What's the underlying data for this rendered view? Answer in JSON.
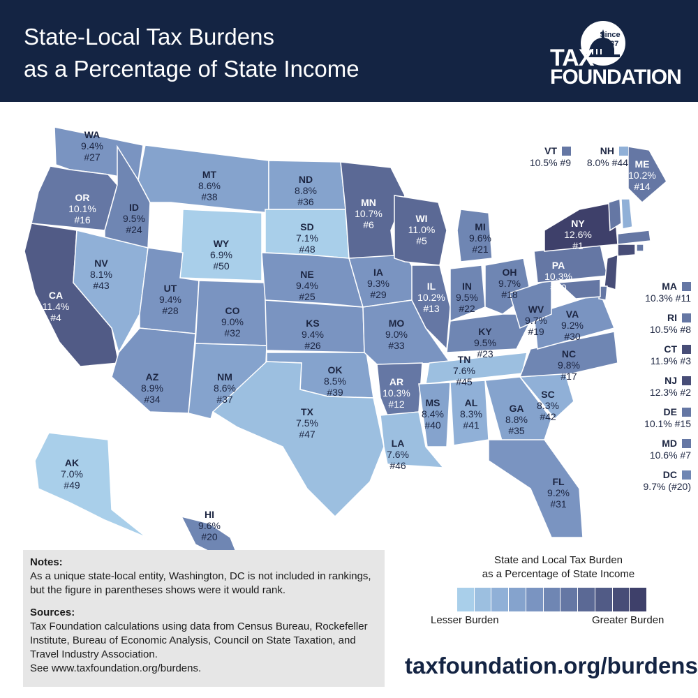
{
  "header": {
    "title_line1": "State-Local Tax Burdens",
    "title_line2": "as a Percentage of State Income",
    "logo_since": "Since",
    "logo_year": "1937",
    "logo_line1": "TAX",
    "logo_line2": "FOUNDATION"
  },
  "palette": [
    "#a9cfea",
    "#9cbfe0",
    "#90b0d7",
    "#85a3cd",
    "#7a94c1",
    "#6f86b3",
    "#6577a4",
    "#5b6995",
    "#515b86",
    "#474d77",
    "#3e406a"
  ],
  "chart_data": {
    "type": "choropleth",
    "states": [
      {
        "abbr": "WA",
        "value": "9.4%",
        "rank": "#27"
      },
      {
        "abbr": "OR",
        "value": "10.1%",
        "rank": "#16"
      },
      {
        "abbr": "CA",
        "value": "11.4%",
        "rank": "#4"
      },
      {
        "abbr": "ID",
        "value": "9.5%",
        "rank": "#24"
      },
      {
        "abbr": "NV",
        "value": "8.1%",
        "rank": "#43"
      },
      {
        "abbr": "MT",
        "value": "8.6%",
        "rank": "#38"
      },
      {
        "abbr": "WY",
        "value": "6.9%",
        "rank": "#50"
      },
      {
        "abbr": "UT",
        "value": "9.4%",
        "rank": "#28"
      },
      {
        "abbr": "AZ",
        "value": "8.9%",
        "rank": "#34"
      },
      {
        "abbr": "CO",
        "value": "9.0%",
        "rank": "#32"
      },
      {
        "abbr": "NM",
        "value": "8.6%",
        "rank": "#37"
      },
      {
        "abbr": "ND",
        "value": "8.8%",
        "rank": "#36"
      },
      {
        "abbr": "SD",
        "value": "7.1%",
        "rank": "#48"
      },
      {
        "abbr": "NE",
        "value": "9.4%",
        "rank": "#25"
      },
      {
        "abbr": "KS",
        "value": "9.4%",
        "rank": "#26"
      },
      {
        "abbr": "OK",
        "value": "8.5%",
        "rank": "#39"
      },
      {
        "abbr": "TX",
        "value": "7.5%",
        "rank": "#47"
      },
      {
        "abbr": "MN",
        "value": "10.7%",
        "rank": "#6"
      },
      {
        "abbr": "IA",
        "value": "9.3%",
        "rank": "#29"
      },
      {
        "abbr": "MO",
        "value": "9.0%",
        "rank": "#33"
      },
      {
        "abbr": "AR",
        "value": "10.3%",
        "rank": "#12"
      },
      {
        "abbr": "LA",
        "value": "7.6%",
        "rank": "#46"
      },
      {
        "abbr": "WI",
        "value": "11.0%",
        "rank": "#5"
      },
      {
        "abbr": "IL",
        "value": "10.2%",
        "rank": "#13"
      },
      {
        "abbr": "MI",
        "value": "9.6%",
        "rank": "#21"
      },
      {
        "abbr": "IN",
        "value": "9.5%",
        "rank": "#22"
      },
      {
        "abbr": "OH",
        "value": "9.7%",
        "rank": "#18"
      },
      {
        "abbr": "KY",
        "value": "9.5%",
        "rank": "#23"
      },
      {
        "abbr": "TN",
        "value": "7.6%",
        "rank": "#45"
      },
      {
        "abbr": "MS",
        "value": "8.4%",
        "rank": "#40"
      },
      {
        "abbr": "AL",
        "value": "8.3%",
        "rank": "#41"
      },
      {
        "abbr": "GA",
        "value": "8.8%",
        "rank": "#35"
      },
      {
        "abbr": "FL",
        "value": "9.2%",
        "rank": "#31"
      },
      {
        "abbr": "SC",
        "value": "8.3%",
        "rank": "#42"
      },
      {
        "abbr": "NC",
        "value": "9.8%",
        "rank": "#17"
      },
      {
        "abbr": "VA",
        "value": "9.2%",
        "rank": "#30"
      },
      {
        "abbr": "WV",
        "value": "9.7%",
        "rank": "#19"
      },
      {
        "abbr": "PA",
        "value": "10.3%",
        "rank": "#10"
      },
      {
        "abbr": "NY",
        "value": "12.6%",
        "rank": "#1"
      },
      {
        "abbr": "ME",
        "value": "10.2%",
        "rank": "#14"
      },
      {
        "abbr": "AK",
        "value": "7.0%",
        "rank": "#49"
      },
      {
        "abbr": "HI",
        "value": "9.6%",
        "rank": "#20"
      }
    ],
    "callouts": [
      {
        "abbr": "VT",
        "text": "10.5% #9"
      },
      {
        "abbr": "NH",
        "text": "8.0% #44"
      },
      {
        "abbr": "MA",
        "text": "10.3% #11"
      },
      {
        "abbr": "RI",
        "text": "10.5% #8"
      },
      {
        "abbr": "CT",
        "text": "11.9% #3"
      },
      {
        "abbr": "NJ",
        "text": "12.3% #2"
      },
      {
        "abbr": "DE",
        "text": "10.1% #15"
      },
      {
        "abbr": "MD",
        "text": "10.6% #7"
      },
      {
        "abbr": "DC",
        "text": "9.7% (#20)"
      }
    ],
    "legend": {
      "title_line1": "State and Local Tax Burden",
      "title_line2": "as a Percentage of State Income",
      "low_label": "Lesser Burden",
      "high_label": "Greater Burden"
    }
  },
  "notes": {
    "notes_heading": "Notes:",
    "notes_text": "As a unique state-local entity, Washington, DC is not included in rankings, but the figure in parentheses shows were it would rank.",
    "sources_heading": "Sources:",
    "sources_text": "Tax Foundation calculations using data from Census Bureau, Rockefeller Institute, Bureau of Economic Analysis, Council on State Taxation, and Travel Industry Association.",
    "see_text": "See www.taxfoundation.org/burdens."
  },
  "footer_url": "taxfoundation.org/burdens"
}
